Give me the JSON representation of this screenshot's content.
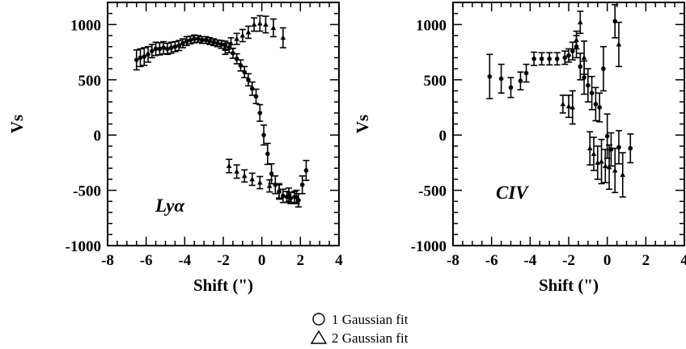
{
  "chart_data": [
    {
      "type": "scatter",
      "panel_label": "Lyα",
      "xlabel": "Shift (\")",
      "ylabel": "Vs",
      "xlim": [
        -8,
        4
      ],
      "ylim": [
        -1000,
        1200
      ],
      "xticks": [
        -8,
        -6,
        -4,
        -2,
        0,
        2,
        4
      ],
      "yticks": [
        -1000,
        -500,
        0,
        500,
        1000
      ],
      "series": [
        {
          "marker": "circle",
          "points": [
            {
              "x": -6.5,
              "y": 680,
              "err": 90
            },
            {
              "x": -6.3,
              "y": 700,
              "err": 80
            },
            {
              "x": -6.1,
              "y": 710,
              "err": 80
            },
            {
              "x": -5.9,
              "y": 730,
              "err": 70
            },
            {
              "x": -5.7,
              "y": 760,
              "err": 60
            },
            {
              "x": -5.5,
              "y": 780,
              "err": 60
            },
            {
              "x": -5.3,
              "y": 780,
              "err": 55
            },
            {
              "x": -5.1,
              "y": 790,
              "err": 55
            },
            {
              "x": -4.9,
              "y": 780,
              "err": 50
            },
            {
              "x": -4.7,
              "y": 790,
              "err": 50
            },
            {
              "x": -4.5,
              "y": 800,
              "err": 45
            },
            {
              "x": -4.3,
              "y": 810,
              "err": 45
            },
            {
              "x": -4.1,
              "y": 830,
              "err": 40
            },
            {
              "x": -3.9,
              "y": 850,
              "err": 40
            },
            {
              "x": -3.7,
              "y": 860,
              "err": 35
            },
            {
              "x": -3.5,
              "y": 870,
              "err": 35
            },
            {
              "x": -3.3,
              "y": 870,
              "err": 30
            },
            {
              "x": -3.1,
              "y": 860,
              "err": 30
            },
            {
              "x": -2.9,
              "y": 860,
              "err": 30
            },
            {
              "x": -2.7,
              "y": 850,
              "err": 30
            },
            {
              "x": -2.5,
              "y": 840,
              "err": 30
            },
            {
              "x": -2.3,
              "y": 830,
              "err": 30
            },
            {
              "x": -2.1,
              "y": 820,
              "err": 35
            },
            {
              "x": -1.9,
              "y": 810,
              "err": 40
            },
            {
              "x": -1.7,
              "y": 790,
              "err": 45
            },
            {
              "x": -1.5,
              "y": 740,
              "err": 45
            },
            {
              "x": -1.3,
              "y": 690,
              "err": 45
            },
            {
              "x": -1.1,
              "y": 630,
              "err": 50
            },
            {
              "x": -0.9,
              "y": 570,
              "err": 50
            },
            {
              "x": -0.7,
              "y": 500,
              "err": 55
            },
            {
              "x": -0.5,
              "y": 420,
              "err": 60
            },
            {
              "x": -0.3,
              "y": 350,
              "err": 65
            },
            {
              "x": -0.1,
              "y": 200,
              "err": 75
            },
            {
              "x": 0.1,
              "y": 0,
              "err": 90
            },
            {
              "x": 0.3,
              "y": -170,
              "err": 95
            },
            {
              "x": 0.5,
              "y": -350,
              "err": 90
            },
            {
              "x": 0.7,
              "y": -450,
              "err": 80
            },
            {
              "x": 0.9,
              "y": -510,
              "err": 70
            },
            {
              "x": 1.1,
              "y": -550,
              "err": 60
            },
            {
              "x": 1.3,
              "y": -560,
              "err": 50
            },
            {
              "x": 1.5,
              "y": -570,
              "err": 50
            },
            {
              "x": 1.7,
              "y": -560,
              "err": 50
            },
            {
              "x": 1.9,
              "y": -590,
              "err": 60
            },
            {
              "x": 2.1,
              "y": -450,
              "err": 80
            },
            {
              "x": 2.3,
              "y": -320,
              "err": 90
            }
          ]
        },
        {
          "marker": "triangle",
          "points": [
            {
              "x": -1.9,
              "y": 780,
              "err": 50
            },
            {
              "x": -1.6,
              "y": 830,
              "err": 50
            },
            {
              "x": -1.3,
              "y": 870,
              "err": 50
            },
            {
              "x": -1.0,
              "y": 900,
              "err": 55
            },
            {
              "x": -0.7,
              "y": 930,
              "err": 55
            },
            {
              "x": -0.4,
              "y": 1000,
              "err": 60
            },
            {
              "x": -0.1,
              "y": 1010,
              "err": 70
            },
            {
              "x": 0.2,
              "y": 1000,
              "err": 75
            },
            {
              "x": 0.6,
              "y": 970,
              "err": 80
            },
            {
              "x": 1.1,
              "y": 880,
              "err": 90
            },
            {
              "x": -1.7,
              "y": -280,
              "err": 60
            },
            {
              "x": -1.3,
              "y": -330,
              "err": 60
            },
            {
              "x": -0.9,
              "y": -370,
              "err": 55
            },
            {
              "x": -0.5,
              "y": -400,
              "err": 55
            },
            {
              "x": -0.1,
              "y": -430,
              "err": 55
            },
            {
              "x": 0.4,
              "y": -460,
              "err": 55
            },
            {
              "x": 0.9,
              "y": -510,
              "err": 60
            },
            {
              "x": 1.4,
              "y": -540,
              "err": 60
            },
            {
              "x": 1.8,
              "y": -560,
              "err": 60
            }
          ]
        }
      ]
    },
    {
      "type": "scatter",
      "panel_label": "CIV",
      "xlabel": "Shift (\")",
      "ylabel": "Vs",
      "xlim": [
        -8,
        4
      ],
      "ylim": [
        -1000,
        1200
      ],
      "xticks": [
        -8,
        -6,
        -4,
        -2,
        0,
        2,
        4
      ],
      "yticks": [
        -1000,
        -500,
        0,
        500,
        1000
      ],
      "series": [
        {
          "marker": "circle",
          "points": [
            {
              "x": -6.1,
              "y": 530,
              "err": 200
            },
            {
              "x": -5.5,
              "y": 510,
              "err": 130
            },
            {
              "x": -5.0,
              "y": 430,
              "err": 90
            },
            {
              "x": -4.5,
              "y": 490,
              "err": 80
            },
            {
              "x": -4.2,
              "y": 560,
              "err": 80
            },
            {
              "x": -3.8,
              "y": 690,
              "err": 60
            },
            {
              "x": -3.4,
              "y": 690,
              "err": 55
            },
            {
              "x": -3.0,
              "y": 690,
              "err": 55
            },
            {
              "x": -2.6,
              "y": 690,
              "err": 55
            },
            {
              "x": -2.2,
              "y": 700,
              "err": 60
            },
            {
              "x": -2.0,
              "y": 720,
              "err": 60
            },
            {
              "x": -1.8,
              "y": 760,
              "err": 80
            },
            {
              "x": -1.6,
              "y": 800,
              "err": 100
            },
            {
              "x": -1.4,
              "y": 620,
              "err": 120
            },
            {
              "x": -1.2,
              "y": 520,
              "err": 150
            },
            {
              "x": -1.0,
              "y": 450,
              "err": 150
            },
            {
              "x": -0.8,
              "y": 380,
              "err": 150
            },
            {
              "x": -0.6,
              "y": 280,
              "err": 150
            },
            {
              "x": -0.4,
              "y": 250,
              "err": 130
            },
            {
              "x": -0.2,
              "y": 600,
              "err": 200
            },
            {
              "x": 0.0,
              "y": -10,
              "err": 200
            },
            {
              "x": 0.2,
              "y": -130,
              "err": 150
            },
            {
              "x": 0.4,
              "y": 1030,
              "err": 150
            },
            {
              "x": 0.6,
              "y": -110,
              "err": 150
            },
            {
              "x": 1.2,
              "y": -120,
              "err": 130
            }
          ]
        },
        {
          "marker": "triangle",
          "points": [
            {
              "x": -2.3,
              "y": 280,
              "err": 80
            },
            {
              "x": -2.0,
              "y": 260,
              "err": 100
            },
            {
              "x": -1.8,
              "y": 250,
              "err": 150
            },
            {
              "x": -1.6,
              "y": 860,
              "err": 80
            },
            {
              "x": -1.4,
              "y": 1020,
              "err": 100
            },
            {
              "x": -1.2,
              "y": 700,
              "err": 150
            },
            {
              "x": -0.9,
              "y": -120,
              "err": 150
            },
            {
              "x": -0.7,
              "y": -170,
              "err": 150
            },
            {
              "x": -0.5,
              "y": -250,
              "err": 150
            },
            {
              "x": -0.3,
              "y": -240,
              "err": 200
            },
            {
              "x": -0.1,
              "y": -280,
              "err": 150
            },
            {
              "x": 0.1,
              "y": -290,
              "err": 200
            },
            {
              "x": 0.4,
              "y": -320,
              "err": 200
            },
            {
              "x": 0.6,
              "y": 820,
              "err": 200
            },
            {
              "x": 0.8,
              "y": -360,
              "err": 200
            }
          ]
        }
      ]
    }
  ],
  "legend": [
    {
      "marker": "circle",
      "label": "1 Gaussian fit"
    },
    {
      "marker": "triangle",
      "label": "2 Gaussian fit"
    }
  ]
}
